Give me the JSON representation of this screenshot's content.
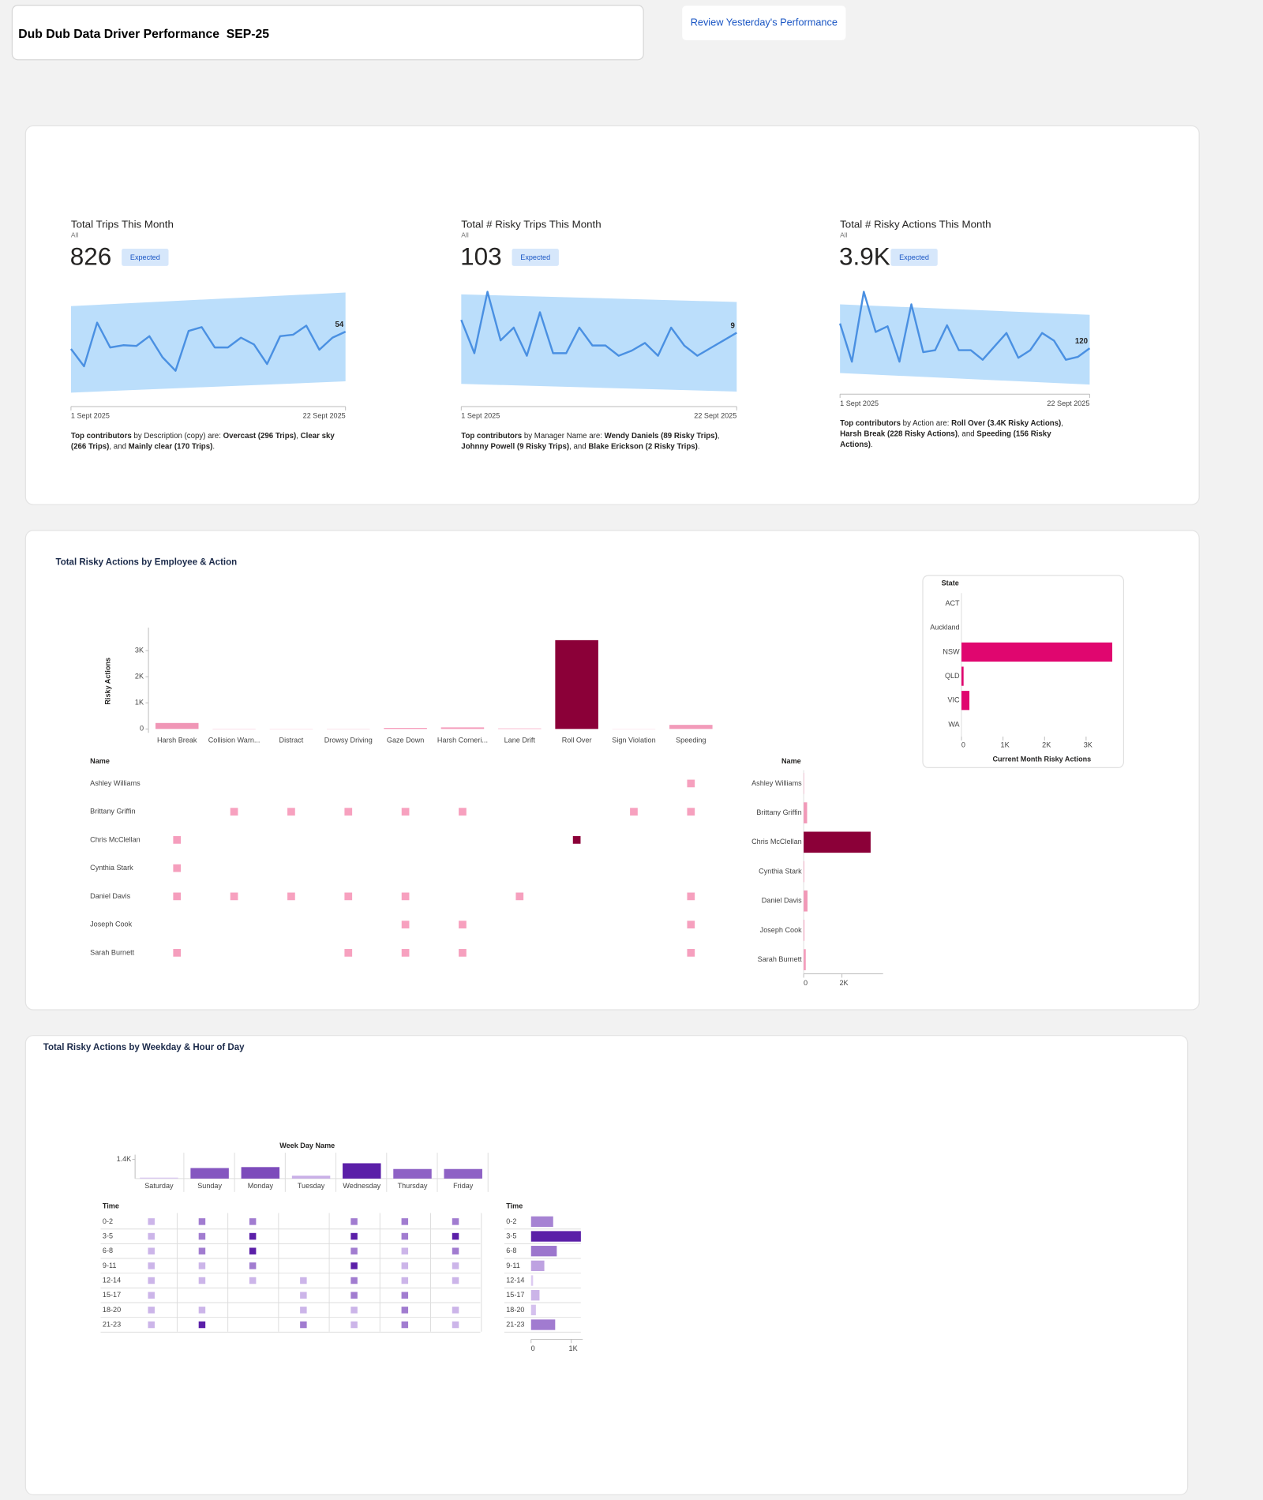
{
  "header": {
    "title": "Dub Dub Data Driver Performance  SEP-25",
    "button": "Review Yesterday's Performance"
  },
  "kpis": [
    {
      "title": "Total Trips This Month",
      "filter": "All",
      "value": "826",
      "badge": "Expected",
      "chart": {
        "type": "line",
        "x_start": "1 Sept 2025",
        "x_end": "22 Sept 2025",
        "ylim": [
          -29,
          107
        ],
        "values": [
          31,
          8,
          66,
          33,
          36,
          35,
          48,
          20,
          2,
          55,
          60,
          33,
          33,
          46,
          37,
          11,
          48,
          50,
          62,
          30,
          46,
          54
        ],
        "band_upper": [
          88,
          106
        ],
        "band_lower": [
          -27,
          -12
        ],
        "line_color": "#4a90e2",
        "band_color": "#bbdefb"
      },
      "summary": [
        "Top contributors",
        " by Description (copy) are: ",
        "Overcast (296 Trips)",
        ", ",
        "Clear sky (266 Trips)",
        ", and ",
        "Mainly clear (170 Trips)",
        "."
      ]
    },
    {
      "title": "Total # Risky Trips This Month",
      "filter": "All",
      "value": "103",
      "badge": "Expected",
      "chart": {
        "type": "line",
        "x_start": "1 Sept 2025",
        "x_end": "22 Sept 2025",
        "ylim": [
          -15,
          25
        ],
        "values": [
          14,
          1,
          25,
          6,
          11,
          0,
          17,
          1,
          1,
          11,
          4,
          4,
          0,
          2,
          5,
          0,
          11,
          4,
          0,
          3,
          6,
          9
        ],
        "band_upper": [
          24,
          21
        ],
        "band_lower": [
          -11,
          -14
        ],
        "line_color": "#4a90e2",
        "band_color": "#bbdefb"
      },
      "summary": [
        "Top contributors",
        " by Manager Name are: ",
        "Wendy Daniels (89 Risky Trips)",
        ", ",
        "Johnny Powell (9 Risky Trips)",
        ", and ",
        "Blake Erickson (2 Risky Trips)",
        "."
      ]
    },
    {
      "title": "Total # Risky Actions This Month",
      "filter": "All",
      "value": "3.9K",
      "badge": "Expected",
      "chart": {
        "type": "line",
        "x_start": "1 Sept 2025",
        "x_end": "22 Sept 2025",
        "ylim": [
          -123,
          498
        ],
        "values": [
          286,
          30,
          498,
          229,
          267,
          30,
          414,
          94,
          107,
          274,
          107,
          107,
          43,
          133,
          222,
          56,
          107,
          222,
          171,
          43,
          62,
          120
        ],
        "band_upper": [
          414,
          344
        ],
        "band_lower": [
          -46,
          -123
        ],
        "line_color": "#4a90e2",
        "band_color": "#bbdefb"
      },
      "summary": [
        "Top contributors",
        " by Action are: ",
        "Roll Over (3.4K Risky Actions)",
        ", ",
        "Harsh Break (228 Risky Actions)",
        ", and ",
        "Speeding (156 Risky Actions)",
        "."
      ]
    }
  ],
  "employee_section": {
    "title": "Total Risky Actions by Employee & Action",
    "color_low": "#f7a1bf",
    "color_high": "#8b0038",
    "action_chart": {
      "type": "bar",
      "y_label": "Risky Actions",
      "categories": [
        "Harsh Break",
        "Collision Warn...",
        "Distract",
        "Drowsy Driving",
        "Gaze Down",
        "Harsh Corneri...",
        "Lane Drift",
        "Roll Over",
        "Sign Violation",
        "Speeding"
      ],
      "values": [
        228,
        10,
        8,
        9,
        40,
        60,
        20,
        3400,
        6,
        156
      ],
      "ylim": [
        0,
        3700
      ],
      "yticks": [
        0,
        {
          "value": 1000,
          "label": "1K"
        },
        {
          "value": 2000,
          "label": "2K"
        },
        {
          "value": 3000,
          "label": "3K"
        }
      ]
    },
    "matrix": {
      "header": "Name",
      "rows": [
        "Ashley Williams",
        "Brittany Griffin",
        "Chris McClellan",
        "Cynthia Stark",
        "Daniel Davis",
        "Joseph Cook",
        "Sarah Burnett"
      ],
      "values": [
        [
          null,
          null,
          null,
          null,
          null,
          null,
          null,
          null,
          null,
          30
        ],
        [
          null,
          5,
          4,
          3,
          10,
          15,
          null,
          null,
          6,
          30
        ],
        [
          60,
          null,
          null,
          null,
          null,
          null,
          null,
          3400,
          null,
          null
        ],
        [
          50,
          null,
          null,
          null,
          null,
          null,
          null,
          null,
          null,
          null
        ],
        [
          60,
          5,
          4,
          3,
          10,
          null,
          20,
          null,
          null,
          30
        ],
        [
          null,
          null,
          null,
          null,
          10,
          15,
          null,
          null,
          null,
          30
        ],
        [
          58,
          null,
          null,
          3,
          10,
          30,
          null,
          null,
          null,
          36
        ]
      ]
    },
    "name_chart": {
      "type": "bar",
      "header": "Name",
      "categories": [
        "Ashley Williams",
        "Brittany Griffin",
        "Chris McClellan",
        "Cynthia Stark",
        "Daniel Davis",
        "Joseph Cook",
        "Sarah Burnett"
      ],
      "values": [
        20,
        180,
        3500,
        30,
        200,
        40,
        110
      ],
      "xlim": [
        0,
        4000
      ],
      "xticks": [
        0,
        {
          "value": 2000,
          "label": "2K"
        }
      ]
    },
    "state_chart": {
      "type": "bar",
      "header": "State",
      "x_label": "Current Month Risky Actions",
      "color": "#e0066f",
      "categories": [
        "ACT",
        "Auckland",
        "NSW",
        "QLD",
        "VIC",
        "WA"
      ],
      "values": [
        0,
        0,
        3630,
        50,
        190,
        0
      ],
      "xlim": [
        0,
        3800
      ],
      "xticks": [
        0,
        {
          "value": 1000,
          "label": "1K"
        },
        {
          "value": 2000,
          "label": "2K"
        },
        {
          "value": 3000,
          "label": "3K"
        }
      ]
    }
  },
  "time_section": {
    "title": "Total Risky Actions by Weekday & Hour of Day",
    "color_low": "#e2d2f5",
    "color_high": "#5b1fa8",
    "weekday_chart": {
      "type": "bar",
      "header": "Week Day Name",
      "categories": [
        "Saturday",
        "Sunday",
        "Monday",
        "Tuesday",
        "Wednesday",
        "Thursday",
        "Friday"
      ],
      "values": [
        70,
        770,
        840,
        210,
        1120,
        700,
        700
      ],
      "ylim": [
        0,
        1400
      ],
      "yticks": [
        {
          "value": 1400,
          "label": "1.4K"
        }
      ]
    },
    "matrix": {
      "header": "Time",
      "rows": [
        "0-2",
        "3-5",
        "6-8",
        "9-11",
        "12-14",
        "15-17",
        "18-20",
        "21-23"
      ],
      "values": [
        [
          40,
          120,
          120,
          null,
          120,
          120,
          120
        ],
        [
          40,
          120,
          250,
          null,
          250,
          120,
          250
        ],
        [
          40,
          120,
          250,
          null,
          120,
          40,
          120
        ],
        [
          40,
          40,
          120,
          null,
          250,
          40,
          40
        ],
        [
          40,
          40,
          40,
          40,
          120,
          40,
          40
        ],
        [
          40,
          null,
          null,
          40,
          120,
          120,
          null
        ],
        [
          40,
          40,
          null,
          40,
          40,
          120,
          40
        ],
        [
          40,
          250,
          null,
          120,
          40,
          120,
          40
        ]
      ]
    },
    "time_chart": {
      "type": "bar",
      "header": "Time",
      "categories": [
        "0-2",
        "3-5",
        "6-8",
        "9-11",
        "12-14",
        "15-17",
        "18-20",
        "21-23"
      ],
      "values": [
        550,
        1240,
        640,
        330,
        50,
        210,
        120,
        600
      ],
      "xlim": [
        0,
        1300
      ],
      "xticks": [
        0,
        {
          "value": 1000,
          "label": "1K"
        }
      ]
    }
  }
}
